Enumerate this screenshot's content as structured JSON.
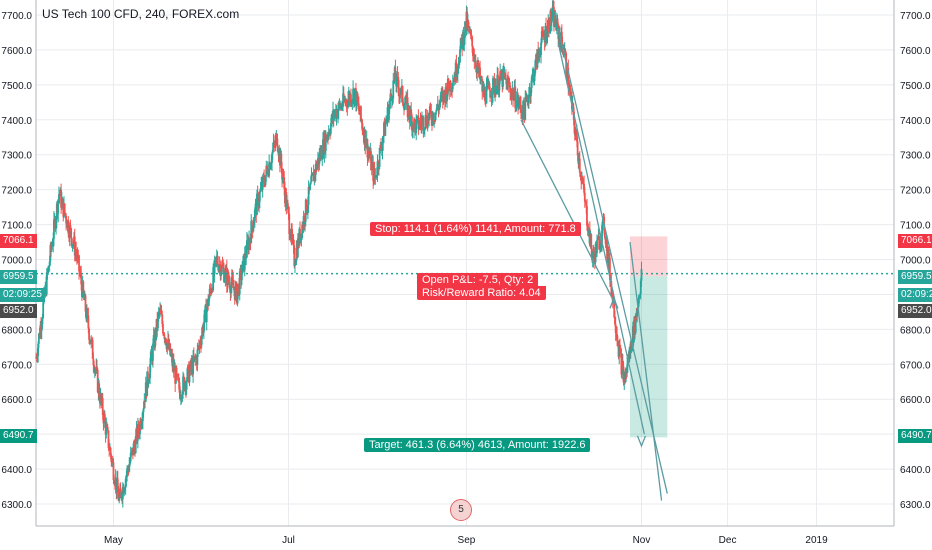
{
  "header": {
    "title": "US Tech 100 CFD, 240, FOREX.com"
  },
  "colors": {
    "up": "#26a69a",
    "down": "#ef5350",
    "grid": "#e9ebee",
    "stop_tag": "#f23645",
    "target_tag": "#089981",
    "last_price": "#26a69a",
    "line": "#5b9ca1"
  },
  "axis_tags": {
    "stop": "7066.1",
    "last": "6959.5",
    "countdown": "02:09:25",
    "current": "6952.0",
    "target": "6490.7"
  },
  "position": {
    "stop_label": "Stop: 114.1 (1.64%) 1141, Amount: 771.8",
    "open_label": "Open P&L: -7.5, Qty: 2",
    "rr_label": "Risk/Reward Ratio: 4.04",
    "target_label": "Target: 461.3 (6.64%) 4613, Amount: 1922.6"
  },
  "events_marker": "5",
  "chart_data": {
    "type": "candlestick",
    "title": "US Tech 100 CFD, 240, FOREX.com",
    "ylim": [
      6260,
      7720
    ],
    "yticks": [
      6300,
      6400,
      6500,
      6600,
      6700,
      6800,
      6900,
      7000,
      7100,
      7200,
      7300,
      7400,
      7500,
      7600,
      7700
    ],
    "ytick_labels": [
      "6300.0",
      "6400.0",
      "6500.0",
      "6600.0",
      "6700.0",
      "6800.0",
      "6900.0",
      "7000.0",
      "7100.0",
      "7200.0",
      "7300.0",
      "7400.0",
      "7500.0",
      "7600.0",
      "7700.0"
    ],
    "x_range": [
      "2018-04-04",
      "2019-01-28"
    ],
    "xticks": [
      "2018-05-01",
      "2018-07-01",
      "2018-09-01",
      "2018-11-01",
      "2018-12-01",
      "2019-01-01"
    ],
    "xtick_labels": [
      "May",
      "Jul",
      "Sep",
      "Nov",
      "Dec",
      "2019"
    ],
    "trend_path": [
      [
        "2018-04-04",
        6720
      ],
      [
        "2018-04-12",
        7190
      ],
      [
        "2018-04-18",
        7020
      ],
      [
        "2018-04-26",
        6620
      ],
      [
        "2018-05-03",
        6310
      ],
      [
        "2018-05-10",
        6520
      ],
      [
        "2018-05-17",
        6850
      ],
      [
        "2018-05-24",
        6620
      ],
      [
        "2018-05-30",
        6720
      ],
      [
        "2018-06-06",
        7000
      ],
      [
        "2018-06-13",
        6900
      ],
      [
        "2018-06-20",
        7160
      ],
      [
        "2018-06-27",
        7350
      ],
      [
        "2018-07-03",
        7000
      ],
      [
        "2018-07-10",
        7250
      ],
      [
        "2018-07-17",
        7420
      ],
      [
        "2018-07-24",
        7480
      ],
      [
        "2018-07-31",
        7230
      ],
      [
        "2018-08-07",
        7520
      ],
      [
        "2018-08-14",
        7380
      ],
      [
        "2018-08-21",
        7420
      ],
      [
        "2018-08-28",
        7530
      ],
      [
        "2018-09-01",
        7680
      ],
      [
        "2018-09-07",
        7470
      ],
      [
        "2018-09-14",
        7520
      ],
      [
        "2018-09-21",
        7420
      ],
      [
        "2018-09-27",
        7620
      ],
      [
        "2018-10-01",
        7700
      ],
      [
        "2018-10-05",
        7600
      ],
      [
        "2018-10-10",
        7300
      ],
      [
        "2018-10-15",
        7000
      ],
      [
        "2018-10-19",
        7100
      ],
      [
        "2018-10-24",
        6750
      ],
      [
        "2018-10-26",
        6650
      ],
      [
        "2018-10-30",
        6830
      ],
      [
        "2018-11-01",
        6952
      ]
    ],
    "position": {
      "entry": 6952.0,
      "stop": 7066.1,
      "target": 6490.7,
      "start": "2018-10-28",
      "end": "2018-11-10"
    }
  }
}
